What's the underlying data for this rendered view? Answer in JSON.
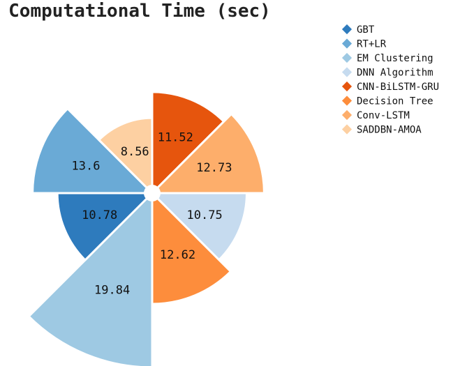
{
  "chart_data": {
    "type": "polar-bar",
    "title": "Computational Time (sec)",
    "categories": [
      "GBT",
      "RT+LR",
      "EM Clustering",
      "DNN Algorithm",
      "CNN-BiLSTM-GRU",
      "Decision Tree",
      "Conv-LSTM",
      "SADDBN-AMOA"
    ],
    "values": [
      10.78,
      13.6,
      19.84,
      10.75,
      11.52,
      12.62,
      12.73,
      8.56
    ],
    "colors": [
      "#2e7bbd",
      "#6aaad6",
      "#9ec9e3",
      "#c6dbef",
      "#e6550d",
      "#fd8d3c",
      "#fdae6b",
      "#fdd0a2"
    ],
    "ylim": [
      0,
      19.84
    ],
    "legend_position": "right"
  }
}
